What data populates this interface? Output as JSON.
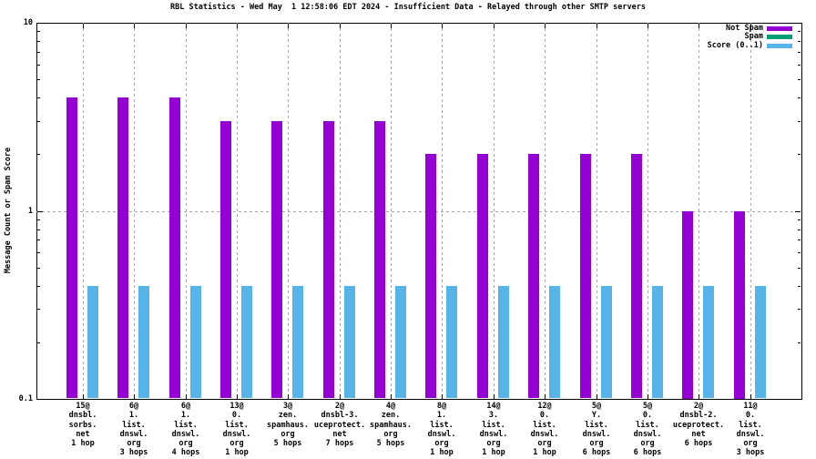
{
  "chart_data": {
    "type": "bar",
    "title": "RBL Statistics - Wed May  1 12:58:06 EDT 2024 - Insufficient Data - Relayed through other SMTP servers",
    "ylabel": "Message Count or Spam Score",
    "y_scale": "log",
    "ylim": [
      0.1,
      10
    ],
    "y_major_ticks": [
      {
        "value": 10,
        "label": "10"
      },
      {
        "value": 1,
        "label": "1"
      },
      {
        "value": 0.1,
        "label": "0.1"
      }
    ],
    "grid": {
      "horizontal_dashed_at": 1,
      "vertical_dashed_at_each_category": true
    },
    "legend_position": "top-right-inside",
    "categories": [
      [
        "15@",
        "dnsbl.",
        "sorbs.",
        "net",
        "1 hop"
      ],
      [
        "6@",
        "1.",
        "list.",
        "dnswl.",
        "org",
        "3 hops"
      ],
      [
        "6@",
        "1.",
        "list.",
        "dnswl.",
        "org",
        "4 hops"
      ],
      [
        "13@",
        "0.",
        "list.",
        "dnswl.",
        "org",
        "1 hop"
      ],
      [
        "3@",
        "zen.",
        "spamhaus.",
        "org",
        "5 hops"
      ],
      [
        "2@",
        "dnsbl-3.",
        "uceprotect.",
        "net",
        "7 hops"
      ],
      [
        "4@",
        "zen.",
        "spamhaus.",
        "org",
        "5 hops"
      ],
      [
        "8@",
        "1.",
        "list.",
        "dnswl.",
        "org",
        "1 hop"
      ],
      [
        "14@",
        "3.",
        "list.",
        "dnswl.",
        "org",
        "1 hop"
      ],
      [
        "12@",
        "0.",
        "list.",
        "dnswl.",
        "org",
        "1 hop"
      ],
      [
        "5@",
        "Y.",
        "list.",
        "dnswl.",
        "org",
        "6 hops"
      ],
      [
        "5@",
        "0.",
        "list.",
        "dnswl.",
        "org",
        "6 hops"
      ],
      [
        "2@",
        "dnsbl-2.",
        "uceprotect.",
        "net",
        "6 hops"
      ],
      [
        "11@",
        "0.",
        "list.",
        "dnswl.",
        "org",
        "3 hops"
      ]
    ],
    "series": [
      {
        "name": "Not Spam",
        "color": "#9400D3",
        "values": [
          4,
          4,
          4,
          3,
          3,
          3,
          3,
          2,
          2,
          2,
          2,
          2,
          1,
          1
        ]
      },
      {
        "name": "Spam",
        "color": "#009E73",
        "values": [
          0,
          0,
          0,
          0,
          0,
          0,
          0,
          0,
          0,
          0,
          0,
          0,
          0,
          0
        ]
      },
      {
        "name": "Score (0..1)",
        "color": "#56B4E9",
        "values": [
          0.4,
          0.4,
          0.4,
          0.4,
          0.4,
          0.4,
          0.4,
          0.4,
          0.4,
          0.4,
          0.4,
          0.4,
          0.4,
          0.4
        ]
      }
    ],
    "colors": {
      "frame": "#000000",
      "grid": "#a8a8a8",
      "background": "#ffffff",
      "text": "#000000"
    }
  }
}
